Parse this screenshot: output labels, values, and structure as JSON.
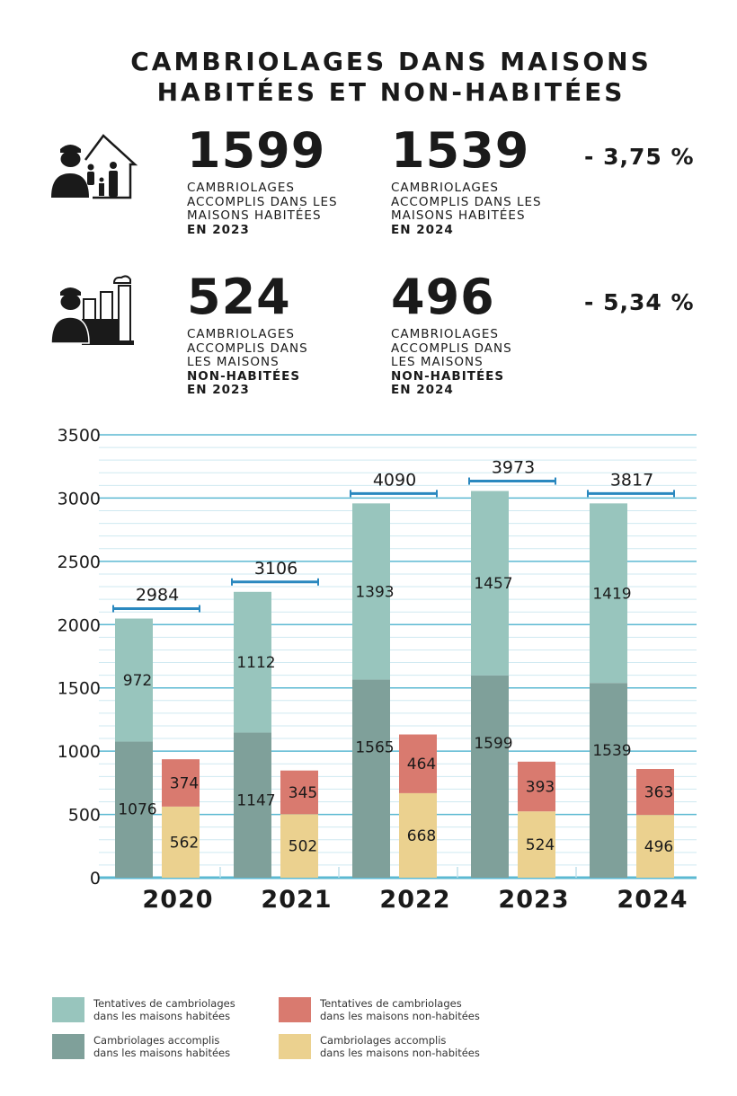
{
  "title": {
    "line1": "CAMBRIOLAGES DANS MAISONS",
    "line2": "HABITÉES ET NON-HABITÉES"
  },
  "stats": [
    {
      "icon": "burglar-family-house-icon",
      "left": {
        "number": "1599",
        "lines": [
          "CAMBRIOLAGES",
          "ACCOMPLIS DANS LES",
          "MAISONS HABITÉES"
        ],
        "bold": [
          "EN 2023"
        ]
      },
      "right": {
        "number": "1539",
        "lines": [
          "CAMBRIOLAGES",
          "ACCOMPLIS DANS LES",
          "MAISONS HABITÉES"
        ],
        "bold": [
          "EN 2024"
        ]
      },
      "change": "- 3,75 %"
    },
    {
      "icon": "burglar-factory-icon",
      "left": {
        "number": "524",
        "lines": [
          "CAMBRIOLAGES",
          "ACCOMPLIS DANS",
          "LES MAISONS"
        ],
        "bold": [
          "NON-HABITÉES",
          "EN 2023"
        ]
      },
      "right": {
        "number": "496",
        "lines": [
          "CAMBRIOLAGES",
          "ACCOMPLIS DANS",
          "LES MAISONS"
        ],
        "bold": [
          "NON-HABITÉES",
          "EN 2024"
        ]
      },
      "change": "- 5,34 %"
    }
  ],
  "chart_data": {
    "type": "bar",
    "stacked": true,
    "grouped": true,
    "categories": [
      "2020",
      "2021",
      "2022",
      "2023",
      "2024"
    ],
    "ylim": [
      0,
      3500
    ],
    "yticks": [
      "0",
      "500",
      "1000",
      "1500",
      "2000",
      "2500",
      "3000",
      "3500"
    ],
    "grid": true,
    "legend_position": "bottom",
    "series": [
      {
        "name": "Cambriolages accomplis dans les maisons habitées",
        "stack": "habitees",
        "color": "#7fa09a",
        "values": [
          1076,
          1147,
          1565,
          1599,
          1539
        ]
      },
      {
        "name": "Tentatives de cambriolages dans les maisons habitées",
        "stack": "habitees",
        "color": "#98c5bd",
        "values": [
          972,
          1112,
          1393,
          1457,
          1419
        ]
      },
      {
        "name": "Cambriolages accomplis dans les maisons non-habitées",
        "stack": "non-habitees",
        "color": "#ebd18f",
        "values": [
          562,
          502,
          668,
          524,
          496
        ]
      },
      {
        "name": "Tentatives de cambriolages dans les maisons non-habitées",
        "stack": "non-habitees",
        "color": "#d97a6f",
        "values": [
          374,
          345,
          464,
          393,
          363
        ]
      }
    ],
    "totals": [
      2984,
      3106,
      4090,
      3973,
      3817
    ],
    "colors": {
      "grid": "#5cb9d2",
      "bracket": "#2a88bf"
    }
  },
  "legend": [
    {
      "line1": "Tentatives de cambriolages",
      "line2": "dans les maisons habitées",
      "color": "#98c5bd"
    },
    {
      "line1": "Tentatives de cambriolages",
      "line2": "dans les maisons non-habitées",
      "color": "#d97a6f"
    },
    {
      "line1": "Cambriolages accomplis",
      "line2": "dans les maisons habitées",
      "color": "#7fa09a"
    },
    {
      "line1": "Cambriolages accomplis",
      "line2": "dans les maisons non-habitées",
      "color": "#ebd18f"
    }
  ]
}
